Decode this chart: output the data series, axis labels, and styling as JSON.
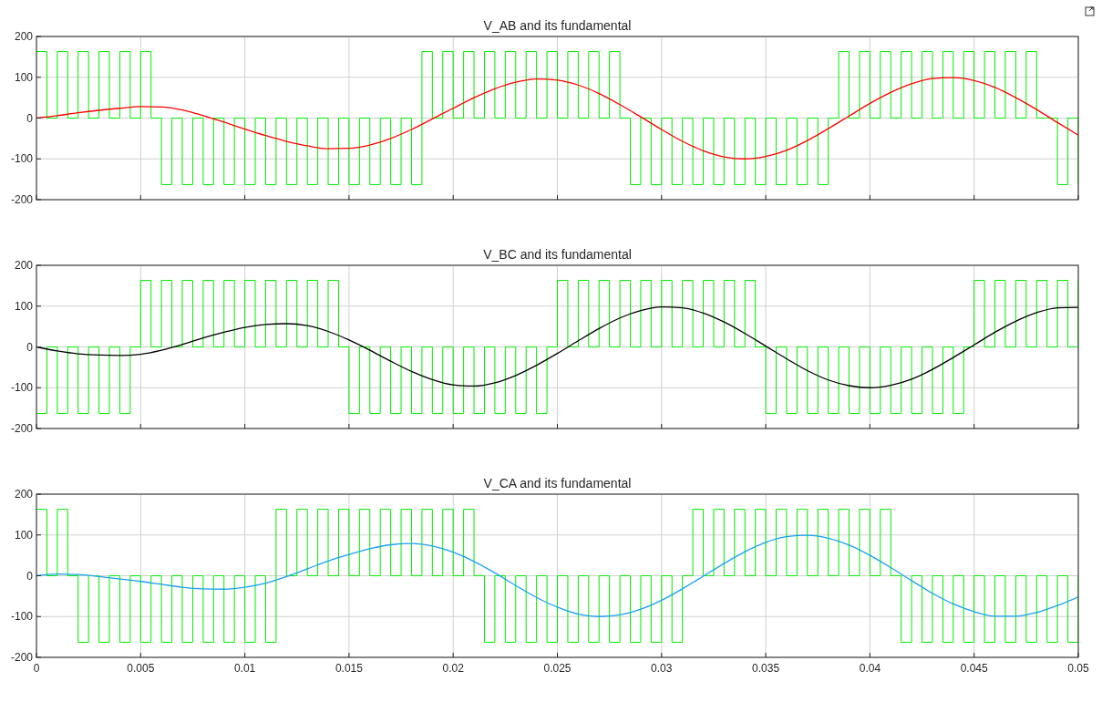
{
  "chart_data": [
    {
      "type": "line",
      "title": "V_AB and its fundamental",
      "xlim": [
        0,
        0.05
      ],
      "ylim": [
        -200,
        200
      ],
      "xticks": [
        0,
        0.005,
        0.01,
        0.015,
        0.02,
        0.025,
        0.03,
        0.035,
        0.04,
        0.045,
        0.05
      ],
      "yticks": [
        -200,
        -100,
        0,
        100,
        200
      ],
      "grid": true,
      "tick_labels": "y",
      "series": [
        {
          "type": "step",
          "color": "#00ee00",
          "x": [
            0,
            0.0005,
            0.001,
            0.0015,
            0.002,
            0.0025,
            0.003,
            0.0035,
            0.004,
            0.0045,
            0.005,
            0.0055,
            0.006,
            0.0065,
            0.007,
            0.0075,
            0.008,
            0.0085,
            0.009,
            0.0095,
            0.01,
            0.0105,
            0.011,
            0.0115,
            0.012,
            0.0125,
            0.013,
            0.0135,
            0.014,
            0.0145,
            0.015,
            0.0155,
            0.016,
            0.0165,
            0.017,
            0.0175,
            0.018,
            0.0185,
            0.019,
            0.0195,
            0.02,
            0.0205,
            0.021,
            0.0215,
            0.022,
            0.0225,
            0.023,
            0.0235,
            0.024,
            0.0245,
            0.025,
            0.0255,
            0.026,
            0.0265,
            0.027,
            0.0275,
            0.028,
            0.0285,
            0.029,
            0.0295,
            0.03,
            0.0305,
            0.031,
            0.0315,
            0.032,
            0.0325,
            0.033,
            0.0335,
            0.034,
            0.0345,
            0.035,
            0.0355,
            0.036,
            0.0365,
            0.037,
            0.0375,
            0.038,
            0.0385,
            0.039,
            0.0395,
            0.04,
            0.0405,
            0.041,
            0.0415,
            0.042,
            0.0425,
            0.043,
            0.0435,
            0.044,
            0.0445,
            0.045,
            0.0455,
            0.046,
            0.0465,
            0.047,
            0.0475,
            0.048,
            0.0485,
            0.049,
            0.0495,
            0.05
          ],
          "values": [
            163,
            0,
            163,
            0,
            163,
            0,
            163,
            0,
            163,
            0,
            163,
            0,
            -163,
            0,
            -163,
            0,
            -163,
            0,
            -163,
            0,
            -163,
            0,
            -163,
            0,
            -163,
            0,
            -163,
            0,
            -163,
            0,
            -163,
            0,
            -163,
            0,
            -163,
            0,
            -163,
            163,
            0,
            163,
            0,
            163,
            0,
            163,
            0,
            163,
            0,
            163,
            0,
            163,
            0,
            163,
            0,
            163,
            0,
            163,
            0,
            -163,
            0,
            -163,
            0,
            -163,
            0,
            -163,
            0,
            -163,
            0,
            -163,
            0,
            -163,
            0,
            -163,
            0,
            -163,
            0,
            -163,
            0,
            163,
            0,
            163,
            0,
            163,
            0,
            163,
            0,
            163,
            0,
            163,
            0,
            163,
            0,
            163,
            0,
            163,
            0,
            163,
            0,
            0,
            -163,
            0,
            -163
          ]
        },
        {
          "color": "#ff0000",
          "x": [
            0,
            0.001,
            0.002,
            0.003,
            0.004,
            0.005,
            0.006,
            0.007,
            0.008,
            0.009,
            0.01,
            0.011,
            0.012,
            0.013,
            0.014,
            0.015,
            0.016,
            0.017,
            0.018,
            0.019,
            0.02,
            0.021,
            0.022,
            0.023,
            0.024,
            0.025,
            0.026,
            0.027,
            0.028,
            0.029,
            0.03,
            0.031,
            0.032,
            0.033,
            0.034,
            0.035,
            0.036,
            0.037,
            0.038,
            0.039,
            0.04,
            0.041,
            0.042,
            0.043,
            0.044,
            0.045,
            0.046,
            0.047,
            0.048,
            0.049,
            0.05
          ],
          "values": [
            0,
            6,
            13,
            19,
            24,
            28,
            27,
            20,
            6,
            -10,
            -27,
            -43,
            -57,
            -68,
            -75,
            -74,
            -66,
            -50,
            -28,
            -2,
            24,
            50,
            72,
            88,
            96,
            93,
            81,
            60,
            33,
            3,
            -28,
            -57,
            -80,
            -95,
            -100,
            -94,
            -79,
            -55,
            -26,
            5,
            36,
            63,
            84,
            97,
            99,
            92,
            75,
            50,
            21,
            -11,
            -42
          ]
        }
      ]
    },
    {
      "type": "line",
      "title": "V_BC and its fundamental",
      "xlim": [
        0,
        0.05
      ],
      "ylim": [
        -200,
        200
      ],
      "xticks": [
        0,
        0.005,
        0.01,
        0.015,
        0.02,
        0.025,
        0.03,
        0.035,
        0.04,
        0.045,
        0.05
      ],
      "yticks": [
        -200,
        -100,
        0,
        100,
        200
      ],
      "grid": true,
      "tick_labels": "y",
      "series": [
        {
          "type": "step",
          "color": "#00ee00",
          "x": [
            0,
            0.0005,
            0.001,
            0.0015,
            0.002,
            0.0025,
            0.003,
            0.0035,
            0.004,
            0.0045,
            0.005,
            0.0055,
            0.006,
            0.0065,
            0.007,
            0.0075,
            0.008,
            0.0085,
            0.009,
            0.0095,
            0.01,
            0.0105,
            0.011,
            0.0115,
            0.012,
            0.0125,
            0.013,
            0.0135,
            0.014,
            0.0145,
            0.015,
            0.0155,
            0.016,
            0.0165,
            0.017,
            0.0175,
            0.018,
            0.0185,
            0.019,
            0.0195,
            0.02,
            0.0205,
            0.021,
            0.0215,
            0.022,
            0.0225,
            0.023,
            0.0235,
            0.024,
            0.0245,
            0.025,
            0.0255,
            0.026,
            0.0265,
            0.027,
            0.0275,
            0.028,
            0.0285,
            0.029,
            0.0295,
            0.03,
            0.0305,
            0.031,
            0.0315,
            0.032,
            0.0325,
            0.033,
            0.0335,
            0.034,
            0.0345,
            0.035,
            0.0355,
            0.036,
            0.0365,
            0.037,
            0.0375,
            0.038,
            0.0385,
            0.039,
            0.0395,
            0.04,
            0.0405,
            0.041,
            0.0415,
            0.042,
            0.0425,
            0.043,
            0.0435,
            0.044,
            0.0445,
            0.045,
            0.0455,
            0.046,
            0.0465,
            0.047,
            0.0475,
            0.048,
            0.0485,
            0.049,
            0.0495,
            0.05
          ],
          "values": [
            -163,
            0,
            -163,
            0,
            -163,
            0,
            -163,
            0,
            -163,
            0,
            163,
            0,
            163,
            0,
            163,
            0,
            163,
            0,
            163,
            0,
            163,
            0,
            163,
            0,
            163,
            0,
            163,
            0,
            163,
            0,
            -163,
            0,
            -163,
            0,
            -163,
            0,
            -163,
            0,
            -163,
            0,
            -163,
            0,
            -163,
            0,
            -163,
            0,
            -163,
            0,
            -163,
            0,
            163,
            0,
            163,
            0,
            163,
            0,
            163,
            0,
            163,
            0,
            163,
            0,
            163,
            0,
            163,
            0,
            163,
            0,
            163,
            0,
            -163,
            0,
            -163,
            0,
            -163,
            0,
            -163,
            0,
            -163,
            0,
            -163,
            0,
            -163,
            0,
            -163,
            0,
            -163,
            0,
            -163,
            0,
            163,
            0,
            163,
            0,
            163,
            0,
            163,
            0,
            163,
            0,
            163
          ]
        },
        {
          "color": "#000000",
          "x": [
            0,
            0.001,
            0.002,
            0.003,
            0.004,
            0.005,
            0.006,
            0.007,
            0.008,
            0.009,
            0.01,
            0.011,
            0.012,
            0.013,
            0.014,
            0.015,
            0.016,
            0.017,
            0.018,
            0.019,
            0.02,
            0.021,
            0.022,
            0.023,
            0.024,
            0.025,
            0.026,
            0.027,
            0.028,
            0.029,
            0.03,
            0.031,
            0.032,
            0.033,
            0.034,
            0.035,
            0.036,
            0.037,
            0.038,
            0.039,
            0.04,
            0.041,
            0.042,
            0.043,
            0.044,
            0.045,
            0.046,
            0.047,
            0.048,
            0.049,
            0.05
          ],
          "values": [
            0,
            -10,
            -17,
            -20,
            -21,
            -18,
            -8,
            6,
            22,
            36,
            48,
            55,
            57,
            52,
            38,
            17,
            -8,
            -35,
            -60,
            -80,
            -93,
            -96,
            -88,
            -70,
            -45,
            -16,
            15,
            45,
            71,
            89,
            98,
            96,
            83,
            61,
            33,
            2,
            -29,
            -58,
            -81,
            -95,
            -100,
            -94,
            -79,
            -55,
            -26,
            5,
            36,
            63,
            84,
            96,
            97
          ]
        }
      ]
    },
    {
      "type": "line",
      "title": "V_CA and its fundamental",
      "xlim": [
        0,
        0.05
      ],
      "ylim": [
        -200,
        200
      ],
      "xticks": [
        0,
        0.005,
        0.01,
        0.015,
        0.02,
        0.025,
        0.03,
        0.035,
        0.04,
        0.045,
        0.05
      ],
      "yticks": [
        -200,
        -100,
        0,
        100,
        200
      ],
      "grid": true,
      "series": [
        {
          "type": "step",
          "color": "#00ee00",
          "x": [
            0,
            0.0005,
            0.001,
            0.0015,
            0.002,
            0.0025,
            0.003,
            0.0035,
            0.004,
            0.0045,
            0.005,
            0.0055,
            0.006,
            0.0065,
            0.007,
            0.0075,
            0.008,
            0.0085,
            0.009,
            0.0095,
            0.01,
            0.0105,
            0.011,
            0.0115,
            0.012,
            0.0125,
            0.013,
            0.0135,
            0.014,
            0.0145,
            0.015,
            0.0155,
            0.016,
            0.0165,
            0.017,
            0.0175,
            0.018,
            0.0185,
            0.019,
            0.0195,
            0.02,
            0.0205,
            0.021,
            0.0215,
            0.022,
            0.0225,
            0.023,
            0.0235,
            0.024,
            0.0245,
            0.025,
            0.0255,
            0.026,
            0.0265,
            0.027,
            0.0275,
            0.028,
            0.0285,
            0.029,
            0.0295,
            0.03,
            0.0305,
            0.031,
            0.0315,
            0.032,
            0.0325,
            0.033,
            0.0335,
            0.034,
            0.0345,
            0.035,
            0.0355,
            0.036,
            0.0365,
            0.037,
            0.0375,
            0.038,
            0.0385,
            0.039,
            0.0395,
            0.04,
            0.0405,
            0.041,
            0.0415,
            0.042,
            0.0425,
            0.043,
            0.0435,
            0.044,
            0.0445,
            0.045,
            0.0455,
            0.046,
            0.0465,
            0.047,
            0.0475,
            0.048,
            0.0485,
            0.049,
            0.0495,
            0.05
          ],
          "values": [
            163,
            0,
            163,
            0,
            -163,
            0,
            -163,
            0,
            -163,
            0,
            -163,
            0,
            -163,
            0,
            -163,
            0,
            -163,
            0,
            -163,
            0,
            -163,
            0,
            -163,
            163,
            0,
            163,
            0,
            163,
            0,
            163,
            0,
            163,
            0,
            163,
            0,
            163,
            0,
            163,
            0,
            163,
            0,
            163,
            0,
            -163,
            0,
            -163,
            0,
            -163,
            0,
            -163,
            0,
            -163,
            0,
            -163,
            0,
            -163,
            0,
            -163,
            0,
            -163,
            0,
            -163,
            0,
            163,
            0,
            163,
            0,
            163,
            0,
            163,
            0,
            163,
            0,
            163,
            0,
            163,
            0,
            163,
            0,
            163,
            0,
            163,
            0,
            -163,
            0,
            -163,
            0,
            -163,
            0,
            -163,
            0,
            -163,
            0,
            -163,
            0,
            -163,
            0,
            -163,
            0,
            -163,
            0
          ]
        },
        {
          "color": "#1aa0f0",
          "x": [
            0,
            0.001,
            0.002,
            0.003,
            0.004,
            0.005,
            0.006,
            0.007,
            0.008,
            0.009,
            0.01,
            0.011,
            0.012,
            0.013,
            0.014,
            0.015,
            0.016,
            0.017,
            0.018,
            0.019,
            0.02,
            0.021,
            0.022,
            0.023,
            0.024,
            0.025,
            0.026,
            0.027,
            0.028,
            0.029,
            0.03,
            0.031,
            0.032,
            0.033,
            0.034,
            0.035,
            0.036,
            0.037,
            0.038,
            0.039,
            0.04,
            0.041,
            0.042,
            0.043,
            0.044,
            0.045,
            0.046,
            0.047,
            0.048,
            0.049,
            0.05
          ],
          "values": [
            0,
            4,
            3,
            -2,
            -8,
            -14,
            -21,
            -28,
            -32,
            -33,
            -28,
            -18,
            -2,
            17,
            36,
            52,
            66,
            76,
            79,
            73,
            58,
            35,
            7,
            -24,
            -53,
            -77,
            -94,
            -100,
            -96,
            -82,
            -60,
            -32,
            -1,
            30,
            59,
            82,
            96,
            99,
            92,
            75,
            50,
            20,
            -12,
            -43,
            -69,
            -88,
            -99,
            -99,
            -90,
            -73,
            -52
          ]
        }
      ]
    }
  ]
}
